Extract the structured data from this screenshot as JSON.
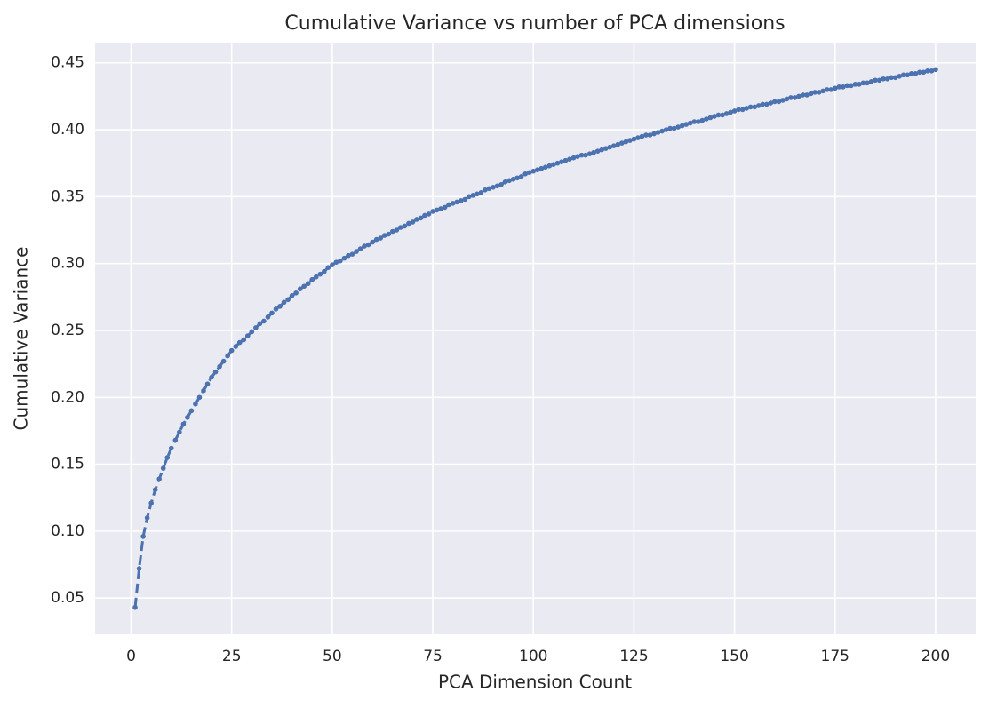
{
  "chart_data": {
    "type": "line",
    "title": "Cumulative Variance vs number of PCA dimensions",
    "x_label": "PCA Dimension Count",
    "y_label": "Cumulative Variance",
    "color": "#4c72b0",
    "grid": true,
    "line_style": "dashed",
    "marker": "circle",
    "xlim": [
      -8.95,
      209.95
    ],
    "ylim": [
      0.0229,
      0.4651
    ],
    "xticks": [
      0,
      25,
      50,
      75,
      100,
      125,
      150,
      175,
      200
    ],
    "yticks": [
      0.05,
      {
        "value": 0.1,
        "label": "0.10"
      },
      0.15,
      {
        "value": 0.2,
        "label": "0.20"
      },
      0.25,
      {
        "value": 0.3,
        "label": "0.30"
      },
      0.35,
      {
        "value": 0.4,
        "label": "0.40"
      },
      0.45
    ],
    "x": [
      1,
      2,
      3,
      4,
      5,
      6,
      7,
      8,
      9,
      10,
      11,
      12,
      13,
      14,
      15,
      16,
      17,
      18,
      19,
      20,
      21,
      22,
      23,
      24,
      25,
      26,
      27,
      28,
      29,
      30,
      31,
      32,
      33,
      34,
      35,
      36,
      37,
      38,
      39,
      40,
      41,
      42,
      43,
      44,
      45,
      46,
      47,
      48,
      49,
      50,
      51,
      52,
      53,
      54,
      55,
      56,
      57,
      58,
      59,
      60,
      61,
      62,
      63,
      64,
      65,
      66,
      67,
      68,
      69,
      70,
      71,
      72,
      73,
      74,
      75,
      76,
      77,
      78,
      79,
      80,
      81,
      82,
      83,
      84,
      85,
      86,
      87,
      88,
      89,
      90,
      91,
      92,
      93,
      94,
      95,
      96,
      97,
      98,
      99,
      100,
      101,
      102,
      103,
      104,
      105,
      106,
      107,
      108,
      109,
      110,
      111,
      112,
      113,
      114,
      115,
      116,
      117,
      118,
      119,
      120,
      121,
      122,
      123,
      124,
      125,
      126,
      127,
      128,
      129,
      130,
      131,
      132,
      133,
      134,
      135,
      136,
      137,
      138,
      139,
      140,
      141,
      142,
      143,
      144,
      145,
      146,
      147,
      148,
      149,
      150,
      151,
      152,
      153,
      154,
      155,
      156,
      157,
      158,
      159,
      160,
      161,
      162,
      163,
      164,
      165,
      166,
      167,
      168,
      169,
      170,
      171,
      172,
      173,
      174,
      175,
      176,
      177,
      178,
      179,
      180,
      181,
      182,
      183,
      184,
      185,
      186,
      187,
      188,
      189,
      190,
      191,
      192,
      193,
      194,
      195,
      196,
      197,
      198,
      199,
      200
    ],
    "values": [
      0.043,
      0.072,
      0.096,
      0.11,
      0.121,
      0.131,
      0.139,
      0.147,
      0.155,
      0.162,
      0.168,
      0.174,
      0.18,
      0.185,
      0.19,
      0.195,
      0.2,
      0.205,
      0.21,
      0.215,
      0.219,
      0.223,
      0.227,
      0.231,
      0.235,
      0.238,
      0.241,
      0.243,
      0.246,
      0.249,
      0.252,
      0.255,
      0.257,
      0.26,
      0.263,
      0.266,
      0.268,
      0.271,
      0.273,
      0.276,
      0.278,
      0.281,
      0.283,
      0.285,
      0.288,
      0.29,
      0.292,
      0.294,
      0.297,
      0.299,
      0.301,
      0.302,
      0.304,
      0.306,
      0.307,
      0.309,
      0.311,
      0.313,
      0.314,
      0.316,
      0.318,
      0.319,
      0.321,
      0.322,
      0.324,
      0.325,
      0.327,
      0.328,
      0.33,
      0.331,
      0.333,
      0.334,
      0.336,
      0.337,
      0.339,
      0.34,
      0.341,
      0.342,
      0.344,
      0.345,
      0.346,
      0.347,
      0.348,
      0.35,
      0.351,
      0.352,
      0.353,
      0.355,
      0.356,
      0.357,
      0.358,
      0.359,
      0.361,
      0.362,
      0.363,
      0.364,
      0.365,
      0.367,
      0.368,
      0.369,
      0.37,
      0.371,
      0.372,
      0.373,
      0.374,
      0.375,
      0.376,
      0.377,
      0.378,
      0.379,
      0.38,
      0.381,
      0.381,
      0.382,
      0.383,
      0.384,
      0.385,
      0.386,
      0.387,
      0.388,
      0.389,
      0.39,
      0.391,
      0.392,
      0.393,
      0.394,
      0.395,
      0.396,
      0.396,
      0.397,
      0.398,
      0.399,
      0.4,
      0.401,
      0.401,
      0.402,
      0.403,
      0.404,
      0.405,
      0.406,
      0.406,
      0.407,
      0.408,
      0.409,
      0.41,
      0.411,
      0.411,
      0.412,
      0.413,
      0.414,
      0.415,
      0.415,
      0.416,
      0.417,
      0.417,
      0.418,
      0.419,
      0.419,
      0.42,
      0.421,
      0.421,
      0.422,
      0.423,
      0.424,
      0.424,
      0.425,
      0.426,
      0.426,
      0.427,
      0.428,
      0.428,
      0.429,
      0.43,
      0.43,
      0.431,
      0.432,
      0.432,
      0.433,
      0.433,
      0.434,
      0.434,
      0.435,
      0.435,
      0.436,
      0.437,
      0.437,
      0.438,
      0.438,
      0.439,
      0.439,
      0.44,
      0.441,
      0.441,
      0.442,
      0.442,
      0.443,
      0.443,
      0.444,
      0.444,
      0.445
    ]
  }
}
